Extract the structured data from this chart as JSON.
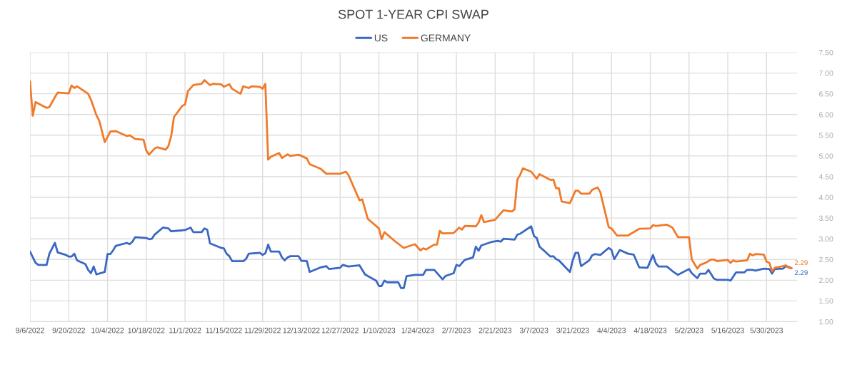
{
  "chart_data": {
    "type": "line",
    "title": "SPOT 1-YEAR CPI SWAP",
    "series": [
      {
        "name": "US",
        "color": "#3a67c4",
        "x": [
          "2022-09-06",
          "2022-09-08",
          "2022-09-09",
          "2022-09-12",
          "2022-09-13",
          "2022-09-15",
          "2022-09-16",
          "2022-09-19",
          "2022-09-20",
          "2022-09-21",
          "2022-09-22",
          "2022-09-23",
          "2022-09-26",
          "2022-09-27",
          "2022-09-28",
          "2022-09-29",
          "2022-09-30",
          "2022-10-03",
          "2022-10-04",
          "2022-10-05",
          "2022-10-06",
          "2022-10-07",
          "2022-10-11",
          "2022-10-12",
          "2022-10-13",
          "2022-10-14",
          "2022-10-18",
          "2022-10-19",
          "2022-10-20",
          "2022-10-21",
          "2022-10-24",
          "2022-10-26",
          "2022-10-27",
          "2022-11-01",
          "2022-11-03",
          "2022-11-04",
          "2022-11-07",
          "2022-11-08",
          "2022-11-09",
          "2022-11-10",
          "2022-11-14",
          "2022-11-15",
          "2022-11-16",
          "2022-11-17",
          "2022-11-18",
          "2022-11-22",
          "2022-11-23",
          "2022-11-24",
          "2022-11-28",
          "2022-11-29",
          "2022-11-30",
          "2022-12-01",
          "2022-12-02",
          "2022-12-05",
          "2022-12-06",
          "2022-12-07",
          "2022-12-08",
          "2022-12-09",
          "2022-12-12",
          "2022-12-13",
          "2022-12-15",
          "2022-12-16",
          "2022-12-20",
          "2022-12-22",
          "2022-12-23",
          "2022-12-27",
          "2022-12-28",
          "2022-12-30",
          "2023-01-03",
          "2023-01-05",
          "2023-01-06",
          "2023-01-09",
          "2023-01-10",
          "2023-01-11",
          "2023-01-12",
          "2023-01-13",
          "2023-01-17",
          "2023-01-18",
          "2023-01-19",
          "2023-01-20",
          "2023-01-23",
          "2023-01-26",
          "2023-01-27",
          "2023-01-30",
          "2023-02-02",
          "2023-02-03",
          "2023-02-06",
          "2023-02-07",
          "2023-02-08",
          "2023-02-10",
          "2023-02-13",
          "2023-02-14",
          "2023-02-15",
          "2023-02-16",
          "2023-02-20",
          "2023-02-22",
          "2023-02-23",
          "2023-02-24",
          "2023-02-28",
          "2023-03-01",
          "2023-03-02",
          "2023-03-06",
          "2023-03-07",
          "2023-03-08",
          "2023-03-09",
          "2023-03-13",
          "2023-03-14",
          "2023-03-15",
          "2023-03-16",
          "2023-03-20",
          "2023-03-21",
          "2023-03-22",
          "2023-03-23",
          "2023-03-24",
          "2023-03-27",
          "2023-03-28",
          "2023-03-29",
          "2023-03-31",
          "2023-04-03",
          "2023-04-04",
          "2023-04-05",
          "2023-04-07",
          "2023-04-10",
          "2023-04-12",
          "2023-04-14",
          "2023-04-17",
          "2023-04-19",
          "2023-04-20",
          "2023-04-21",
          "2023-04-24",
          "2023-04-26",
          "2023-04-28",
          "2023-05-02",
          "2023-05-03",
          "2023-05-05",
          "2023-05-06",
          "2023-05-08",
          "2023-05-09",
          "2023-05-11",
          "2023-05-12",
          "2023-05-16",
          "2023-05-17",
          "2023-05-19",
          "2023-05-22",
          "2023-05-23",
          "2023-05-25",
          "2023-05-26",
          "2023-05-29",
          "2023-05-31",
          "2023-06-01",
          "2023-06-02",
          "2023-06-05",
          "2023-06-06",
          "2023-06-07",
          "2023-06-08"
        ],
        "values": [
          2.69,
          2.42,
          2.37,
          2.37,
          2.64,
          2.9,
          2.67,
          2.61,
          2.57,
          2.57,
          2.64,
          2.48,
          2.39,
          2.25,
          2.17,
          2.33,
          2.14,
          2.2,
          2.63,
          2.63,
          2.72,
          2.83,
          2.9,
          2.87,
          2.93,
          3.04,
          3.02,
          2.99,
          3.0,
          3.1,
          3.27,
          3.25,
          3.18,
          3.21,
          3.27,
          3.16,
          3.16,
          3.25,
          3.22,
          2.89,
          2.78,
          2.77,
          2.64,
          2.58,
          2.46,
          2.46,
          2.51,
          2.64,
          2.66,
          2.61,
          2.65,
          2.86,
          2.69,
          2.69,
          2.55,
          2.48,
          2.55,
          2.58,
          2.58,
          2.47,
          2.46,
          2.2,
          2.31,
          2.34,
          2.27,
          2.3,
          2.37,
          2.33,
          2.36,
          2.14,
          2.1,
          1.99,
          1.86,
          1.86,
          1.99,
          1.95,
          1.95,
          1.81,
          1.81,
          2.1,
          2.13,
          2.13,
          2.25,
          2.25,
          2.02,
          2.1,
          2.17,
          2.37,
          2.34,
          2.49,
          2.55,
          2.81,
          2.71,
          2.84,
          2.93,
          2.95,
          2.93,
          3.0,
          2.98,
          3.1,
          3.12,
          3.3,
          3.07,
          3.02,
          2.81,
          2.57,
          2.58,
          2.51,
          2.48,
          2.2,
          2.48,
          2.66,
          2.66,
          2.34,
          2.48,
          2.6,
          2.63,
          2.61,
          2.78,
          2.73,
          2.51,
          2.73,
          2.64,
          2.62,
          2.31,
          2.3,
          2.61,
          2.41,
          2.33,
          2.33,
          2.22,
          2.13,
          2.27,
          2.17,
          2.05,
          2.16,
          2.16,
          2.25,
          2.04,
          2.01,
          2.01,
          1.99,
          2.19,
          2.19,
          2.25,
          2.25,
          2.23,
          2.28,
          2.27,
          2.16,
          2.27,
          2.28,
          2.34,
          2.32,
          2.29
        ]
      },
      {
        "name": "GERMANY",
        "color": "#f07a2a",
        "x": [
          "2022-09-06",
          "2022-09-07",
          "2022-09-08",
          "2022-09-12",
          "2022-09-13",
          "2022-09-15",
          "2022-09-16",
          "2022-09-20",
          "2022-09-21",
          "2022-09-22",
          "2022-09-23",
          "2022-09-27",
          "2022-09-28",
          "2022-09-30",
          "2022-10-01",
          "2022-10-03",
          "2022-10-05",
          "2022-10-07",
          "2022-10-11",
          "2022-10-12",
          "2022-10-14",
          "2022-10-17",
          "2022-10-18",
          "2022-10-19",
          "2022-10-21",
          "2022-10-22",
          "2022-10-25",
          "2022-10-26",
          "2022-10-27",
          "2022-10-28",
          "2022-10-31",
          "2022-11-01",
          "2022-11-02",
          "2022-11-04",
          "2022-11-07",
          "2022-11-08",
          "2022-11-10",
          "2022-11-11",
          "2022-11-14",
          "2022-11-15",
          "2022-11-17",
          "2022-11-18",
          "2022-11-21",
          "2022-11-22",
          "2022-11-24",
          "2022-11-25",
          "2022-11-28",
          "2022-11-29",
          "2022-11-30",
          "2022-12-01",
          "2022-12-02",
          "2022-12-05",
          "2022-12-06",
          "2022-12-08",
          "2022-12-09",
          "2022-12-12",
          "2022-12-15",
          "2022-12-16",
          "2022-12-20",
          "2022-12-22",
          "2022-12-27",
          "2022-12-29",
          "2022-12-30",
          "2023-01-03",
          "2023-01-04",
          "2023-01-06",
          "2023-01-10",
          "2023-01-11",
          "2023-01-12",
          "2023-01-16",
          "2023-01-19",
          "2023-01-23",
          "2023-01-25",
          "2023-01-26",
          "2023-01-27",
          "2023-01-30",
          "2023-01-31",
          "2023-02-01",
          "2023-02-02",
          "2023-02-06",
          "2023-02-08",
          "2023-02-09",
          "2023-02-10",
          "2023-02-14",
          "2023-02-15",
          "2023-02-16",
          "2023-02-17",
          "2023-02-21",
          "2023-02-24",
          "2023-02-27",
          "2023-02-28",
          "2023-03-01",
          "2023-03-02",
          "2023-03-03",
          "2023-03-06",
          "2023-03-08",
          "2023-03-09",
          "2023-03-13",
          "2023-03-14",
          "2023-03-15",
          "2023-03-16",
          "2023-03-17",
          "2023-03-20",
          "2023-03-22",
          "2023-03-23",
          "2023-03-24",
          "2023-03-27",
          "2023-03-28",
          "2023-03-30",
          "2023-03-31",
          "2023-04-03",
          "2023-04-04",
          "2023-04-06",
          "2023-04-10",
          "2023-04-14",
          "2023-04-18",
          "2023-04-19",
          "2023-04-20",
          "2023-04-24",
          "2023-04-26",
          "2023-04-28",
          "2023-05-02",
          "2023-05-03",
          "2023-05-05",
          "2023-05-06",
          "2023-05-08",
          "2023-05-10",
          "2023-05-11",
          "2023-05-12",
          "2023-05-16",
          "2023-05-17",
          "2023-05-18",
          "2023-05-19",
          "2023-05-23",
          "2023-05-24",
          "2023-05-25",
          "2023-05-26",
          "2023-05-29",
          "2023-05-30",
          "2023-05-31",
          "2023-06-01",
          "2023-06-02",
          "2023-06-05",
          "2023-06-06",
          "2023-06-07",
          "2023-06-08"
        ],
        "values": [
          6.8,
          5.97,
          6.3,
          6.16,
          6.18,
          6.42,
          6.53,
          6.51,
          6.7,
          6.64,
          6.68,
          6.5,
          6.36,
          5.98,
          5.85,
          5.33,
          5.59,
          5.6,
          5.48,
          5.5,
          5.41,
          5.39,
          5.13,
          5.03,
          5.18,
          5.21,
          5.15,
          5.24,
          5.48,
          5.94,
          6.21,
          6.24,
          6.56,
          6.71,
          6.74,
          6.83,
          6.71,
          6.74,
          6.73,
          6.67,
          6.73,
          6.62,
          6.5,
          6.68,
          6.64,
          6.68,
          6.67,
          6.62,
          6.74,
          4.91,
          4.98,
          5.07,
          4.95,
          5.04,
          5.0,
          5.03,
          4.94,
          4.8,
          4.69,
          4.57,
          4.57,
          4.62,
          4.54,
          3.93,
          3.95,
          3.48,
          3.25,
          2.99,
          3.16,
          2.93,
          2.78,
          2.87,
          2.72,
          2.77,
          2.74,
          2.86,
          2.86,
          3.19,
          3.13,
          3.14,
          3.27,
          3.22,
          3.31,
          3.3,
          3.39,
          3.57,
          3.4,
          3.46,
          3.69,
          3.66,
          3.71,
          4.43,
          4.54,
          4.7,
          4.62,
          4.45,
          4.56,
          4.42,
          4.43,
          4.22,
          4.22,
          3.9,
          3.86,
          4.16,
          4.16,
          4.09,
          4.09,
          4.18,
          4.24,
          4.12,
          3.28,
          3.25,
          3.08,
          3.08,
          3.24,
          3.25,
          3.33,
          3.31,
          3.34,
          3.27,
          3.04,
          3.04,
          2.5,
          2.28,
          2.37,
          2.42,
          2.5,
          2.5,
          2.46,
          2.49,
          2.42,
          2.48,
          2.45,
          2.48,
          2.64,
          2.6,
          2.63,
          2.62,
          2.45,
          2.42,
          2.22,
          2.3,
          2.34,
          2.36,
          2.3,
          2.29
        ]
      }
    ],
    "xlim": [
      "2022-09-06",
      "2023-06-10"
    ],
    "xticks": [
      {
        "value": "2022-09-06",
        "label": "9/6/2022"
      },
      {
        "value": "2022-09-20",
        "label": "9/20/2022"
      },
      {
        "value": "2022-10-04",
        "label": "10/4/2022"
      },
      {
        "value": "2022-10-18",
        "label": "10/18/2022"
      },
      {
        "value": "2022-11-01",
        "label": "11/1/2022"
      },
      {
        "value": "2022-11-15",
        "label": "11/15/2022"
      },
      {
        "value": "2022-11-29",
        "label": "11/29/2022"
      },
      {
        "value": "2022-12-13",
        "label": "12/13/2022"
      },
      {
        "value": "2022-12-27",
        "label": "12/27/2022"
      },
      {
        "value": "2023-01-10",
        "label": "1/10/2023"
      },
      {
        "value": "2023-01-24",
        "label": "1/24/2023"
      },
      {
        "value": "2023-02-07",
        "label": "2/7/2023"
      },
      {
        "value": "2023-02-21",
        "label": "2/21/2023"
      },
      {
        "value": "2023-03-07",
        "label": "3/7/2023"
      },
      {
        "value": "2023-03-21",
        "label": "3/21/2023"
      },
      {
        "value": "2023-04-04",
        "label": "4/4/2023"
      },
      {
        "value": "2023-04-18",
        "label": "4/18/2023"
      },
      {
        "value": "2023-05-02",
        "label": "5/2/2023"
      },
      {
        "value": "2023-05-16",
        "label": "5/16/2023"
      },
      {
        "value": "2023-05-30",
        "label": "5/30/2023"
      }
    ],
    "ylim": [
      1.0,
      7.5
    ],
    "yticks": [
      {
        "value": 1.0,
        "label": "1.00"
      },
      {
        "value": 1.5,
        "label": "1.50"
      },
      {
        "value": 2.0,
        "label": "2.00"
      },
      {
        "value": 2.5,
        "label": "2.50"
      },
      {
        "value": 3.0,
        "label": "3.00"
      },
      {
        "value": 3.5,
        "label": "3.50"
      },
      {
        "value": 4.0,
        "label": "4.00"
      },
      {
        "value": 4.5,
        "label": "4.50"
      },
      {
        "value": 5.0,
        "label": "5.00"
      },
      {
        "value": 5.5,
        "label": "5.50"
      },
      {
        "value": 6.0,
        "label": "6.00"
      },
      {
        "value": 6.5,
        "label": "6.50"
      },
      {
        "value": 7.0,
        "label": "7.00"
      },
      {
        "value": 7.5,
        "label": "7.50"
      }
    ],
    "annotations": [
      {
        "text": "2.29",
        "x": "2023-06-08",
        "y": 2.29
      },
      {
        "text": "2.29",
        "x": "2023-06-08",
        "y": 2.29
      }
    ],
    "grid": true,
    "legend": "top",
    "line_style": "solid",
    "marker": "none"
  }
}
